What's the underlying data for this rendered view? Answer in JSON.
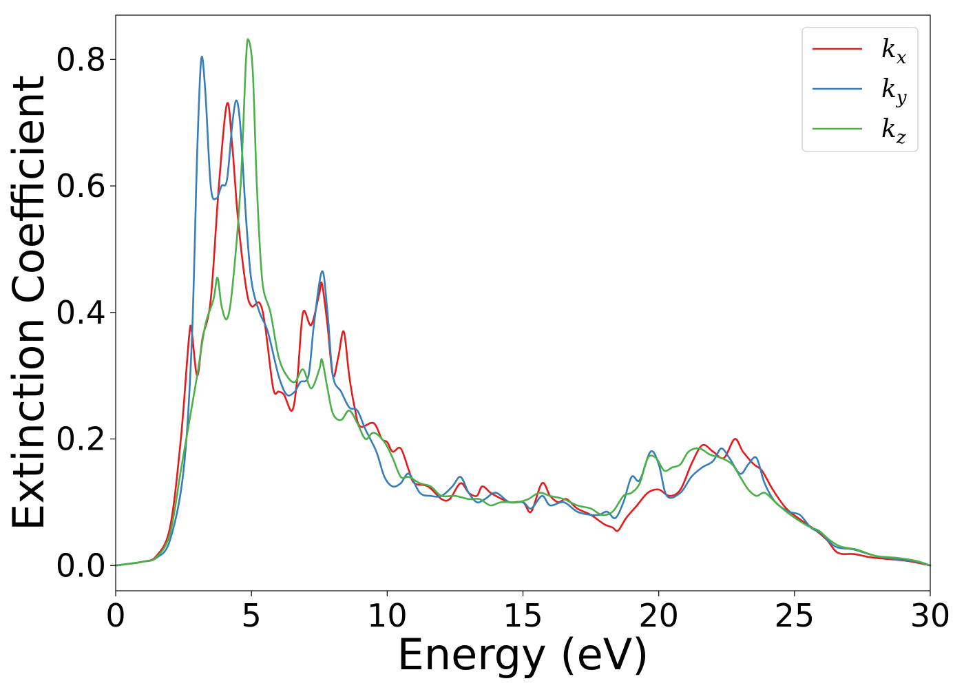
{
  "chart_data": {
    "type": "line",
    "xlabel": "Energy (eV)",
    "ylabel": "Extinction Coefficient",
    "xlim": [
      0,
      30
    ],
    "ylim": [
      -0.04,
      0.87
    ],
    "x_ticks": [
      0,
      5,
      10,
      15,
      20,
      25,
      30
    ],
    "x_tick_labels": [
      "0",
      "5",
      "10",
      "15",
      "20",
      "25",
      "30"
    ],
    "y_ticks": [
      0.0,
      0.2,
      0.4,
      0.6,
      0.8
    ],
    "y_tick_labels": [
      "0.0",
      "0.2",
      "0.4",
      "0.6",
      "0.8"
    ],
    "grid": false,
    "legend_position": "top-right",
    "series": [
      {
        "name": "k",
        "subscript": "x",
        "color": "#e41a1c",
        "points": [
          [
            0,
            0
          ],
          [
            1,
            0.006
          ],
          [
            1.5,
            0.015
          ],
          [
            2,
            0.06
          ],
          [
            2.4,
            0.2
          ],
          [
            2.7,
            0.36
          ],
          [
            2.8,
            0.37
          ],
          [
            3.0,
            0.3
          ],
          [
            3.2,
            0.36
          ],
          [
            3.5,
            0.42
          ],
          [
            3.8,
            0.6
          ],
          [
            4.1,
            0.73
          ],
          [
            4.3,
            0.66
          ],
          [
            4.5,
            0.55
          ],
          [
            4.8,
            0.44
          ],
          [
            5.0,
            0.41
          ],
          [
            5.3,
            0.415
          ],
          [
            5.5,
            0.38
          ],
          [
            5.8,
            0.28
          ],
          [
            6.0,
            0.275
          ],
          [
            6.2,
            0.27
          ],
          [
            6.5,
            0.245
          ],
          [
            6.7,
            0.3
          ],
          [
            6.9,
            0.4
          ],
          [
            7.2,
            0.38
          ],
          [
            7.5,
            0.43
          ],
          [
            7.6,
            0.445
          ],
          [
            7.8,
            0.38
          ],
          [
            8.0,
            0.3
          ],
          [
            8.2,
            0.33
          ],
          [
            8.4,
            0.37
          ],
          [
            8.6,
            0.3
          ],
          [
            8.8,
            0.25
          ],
          [
            9.0,
            0.22
          ],
          [
            9.5,
            0.225
          ],
          [
            9.8,
            0.2
          ],
          [
            10.0,
            0.195
          ],
          [
            10.2,
            0.18
          ],
          [
            10.5,
            0.185
          ],
          [
            10.8,
            0.15
          ],
          [
            11.0,
            0.13
          ],
          [
            11.5,
            0.125
          ],
          [
            12.0,
            0.105
          ],
          [
            12.3,
            0.105
          ],
          [
            12.7,
            0.13
          ],
          [
            13.0,
            0.115
          ],
          [
            13.3,
            0.11
          ],
          [
            13.5,
            0.125
          ],
          [
            13.8,
            0.115
          ],
          [
            14.0,
            0.11
          ],
          [
            14.5,
            0.1
          ],
          [
            15.0,
            0.1
          ],
          [
            15.3,
            0.085
          ],
          [
            15.7,
            0.13
          ],
          [
            16.0,
            0.11
          ],
          [
            16.3,
            0.1
          ],
          [
            16.6,
            0.105
          ],
          [
            17.0,
            0.09
          ],
          [
            17.5,
            0.08
          ],
          [
            18.0,
            0.065
          ],
          [
            18.3,
            0.06
          ],
          [
            18.5,
            0.055
          ],
          [
            18.8,
            0.075
          ],
          [
            19.2,
            0.095
          ],
          [
            19.6,
            0.115
          ],
          [
            20.0,
            0.12
          ],
          [
            20.4,
            0.11
          ],
          [
            20.8,
            0.12
          ],
          [
            21.2,
            0.16
          ],
          [
            21.6,
            0.19
          ],
          [
            22.0,
            0.18
          ],
          [
            22.4,
            0.17
          ],
          [
            22.8,
            0.2
          ],
          [
            23.1,
            0.18
          ],
          [
            23.5,
            0.16
          ],
          [
            23.8,
            0.15
          ],
          [
            24.2,
            0.12
          ],
          [
            24.7,
            0.09
          ],
          [
            25.3,
            0.07
          ],
          [
            25.8,
            0.055
          ],
          [
            26.2,
            0.04
          ],
          [
            26.6,
            0.02
          ],
          [
            27.2,
            0.018
          ],
          [
            27.8,
            0.013
          ],
          [
            28.5,
            0.01
          ],
          [
            29.2,
            0.007
          ],
          [
            30,
            0.0
          ]
        ]
      },
      {
        "name": "k",
        "subscript": "y",
        "color": "#377eb8",
        "points": [
          [
            0,
            0
          ],
          [
            1,
            0.006
          ],
          [
            1.5,
            0.012
          ],
          [
            2,
            0.04
          ],
          [
            2.5,
            0.15
          ],
          [
            2.8,
            0.35
          ],
          [
            3.0,
            0.65
          ],
          [
            3.15,
            0.8
          ],
          [
            3.3,
            0.75
          ],
          [
            3.5,
            0.6
          ],
          [
            3.7,
            0.58
          ],
          [
            3.9,
            0.6
          ],
          [
            4.1,
            0.61
          ],
          [
            4.3,
            0.7
          ],
          [
            4.45,
            0.735
          ],
          [
            4.6,
            0.69
          ],
          [
            4.8,
            0.55
          ],
          [
            5.0,
            0.45
          ],
          [
            5.3,
            0.4
          ],
          [
            5.6,
            0.37
          ],
          [
            6.0,
            0.3
          ],
          [
            6.3,
            0.27
          ],
          [
            6.6,
            0.275
          ],
          [
            6.8,
            0.29
          ],
          [
            7.1,
            0.3
          ],
          [
            7.3,
            0.38
          ],
          [
            7.6,
            0.465
          ],
          [
            7.8,
            0.4
          ],
          [
            8.0,
            0.3
          ],
          [
            8.3,
            0.275
          ],
          [
            8.6,
            0.25
          ],
          [
            8.9,
            0.245
          ],
          [
            9.2,
            0.215
          ],
          [
            9.6,
            0.18
          ],
          [
            9.9,
            0.14
          ],
          [
            10.2,
            0.125
          ],
          [
            10.5,
            0.13
          ],
          [
            10.8,
            0.145
          ],
          [
            11.2,
            0.115
          ],
          [
            11.6,
            0.11
          ],
          [
            12.0,
            0.11
          ],
          [
            12.4,
            0.125
          ],
          [
            12.7,
            0.14
          ],
          [
            13.0,
            0.115
          ],
          [
            13.3,
            0.1
          ],
          [
            13.6,
            0.105
          ],
          [
            14.0,
            0.115
          ],
          [
            14.5,
            0.1
          ],
          [
            15.0,
            0.1
          ],
          [
            15.3,
            0.09
          ],
          [
            15.7,
            0.11
          ],
          [
            16.0,
            0.095
          ],
          [
            16.5,
            0.1
          ],
          [
            17.0,
            0.085
          ],
          [
            17.5,
            0.08
          ],
          [
            17.8,
            0.08
          ],
          [
            18.1,
            0.085
          ],
          [
            18.4,
            0.075
          ],
          [
            18.7,
            0.1
          ],
          [
            19.0,
            0.14
          ],
          [
            19.3,
            0.135
          ],
          [
            19.7,
            0.18
          ],
          [
            20.0,
            0.16
          ],
          [
            20.3,
            0.11
          ],
          [
            20.8,
            0.115
          ],
          [
            21.2,
            0.14
          ],
          [
            21.6,
            0.155
          ],
          [
            22.0,
            0.165
          ],
          [
            22.3,
            0.185
          ],
          [
            22.6,
            0.17
          ],
          [
            23.0,
            0.145
          ],
          [
            23.3,
            0.16
          ],
          [
            23.6,
            0.17
          ],
          [
            23.9,
            0.13
          ],
          [
            24.3,
            0.1
          ],
          [
            24.8,
            0.085
          ],
          [
            25.2,
            0.08
          ],
          [
            25.6,
            0.06
          ],
          [
            26.0,
            0.05
          ],
          [
            26.5,
            0.03
          ],
          [
            27.2,
            0.025
          ],
          [
            28.0,
            0.015
          ],
          [
            28.8,
            0.01
          ],
          [
            29.5,
            0.006
          ],
          [
            30,
            0.0
          ]
        ]
      },
      {
        "name": "k",
        "subscript": "z",
        "color": "#4daf4a",
        "points": [
          [
            0,
            0
          ],
          [
            1,
            0.006
          ],
          [
            1.5,
            0.013
          ],
          [
            2,
            0.05
          ],
          [
            2.4,
            0.15
          ],
          [
            2.8,
            0.25
          ],
          [
            3.0,
            0.3
          ],
          [
            3.3,
            0.38
          ],
          [
            3.6,
            0.42
          ],
          [
            3.75,
            0.455
          ],
          [
            3.9,
            0.41
          ],
          [
            4.1,
            0.39
          ],
          [
            4.3,
            0.44
          ],
          [
            4.6,
            0.6
          ],
          [
            4.8,
            0.8
          ],
          [
            4.9,
            0.83
          ],
          [
            5.05,
            0.78
          ],
          [
            5.2,
            0.6
          ],
          [
            5.4,
            0.45
          ],
          [
            5.7,
            0.4
          ],
          [
            6.0,
            0.33
          ],
          [
            6.3,
            0.3
          ],
          [
            6.6,
            0.29
          ],
          [
            6.9,
            0.31
          ],
          [
            7.2,
            0.28
          ],
          [
            7.5,
            0.31
          ],
          [
            7.6,
            0.325
          ],
          [
            7.8,
            0.28
          ],
          [
            8.0,
            0.24
          ],
          [
            8.3,
            0.23
          ],
          [
            8.6,
            0.245
          ],
          [
            8.9,
            0.225
          ],
          [
            9.2,
            0.2
          ],
          [
            9.5,
            0.21
          ],
          [
            9.9,
            0.195
          ],
          [
            10.2,
            0.17
          ],
          [
            10.5,
            0.14
          ],
          [
            10.8,
            0.14
          ],
          [
            11.2,
            0.13
          ],
          [
            11.6,
            0.125
          ],
          [
            12.0,
            0.11
          ],
          [
            12.5,
            0.11
          ],
          [
            13.0,
            0.105
          ],
          [
            13.4,
            0.105
          ],
          [
            13.8,
            0.095
          ],
          [
            14.2,
            0.1
          ],
          [
            14.8,
            0.1
          ],
          [
            15.2,
            0.105
          ],
          [
            15.6,
            0.115
          ],
          [
            16.0,
            0.11
          ],
          [
            16.5,
            0.105
          ],
          [
            17.0,
            0.095
          ],
          [
            17.5,
            0.09
          ],
          [
            17.9,
            0.08
          ],
          [
            18.3,
            0.085
          ],
          [
            18.7,
            0.11
          ],
          [
            19.0,
            0.115
          ],
          [
            19.3,
            0.13
          ],
          [
            19.6,
            0.17
          ],
          [
            19.9,
            0.17
          ],
          [
            20.2,
            0.15
          ],
          [
            20.5,
            0.155
          ],
          [
            20.8,
            0.16
          ],
          [
            21.1,
            0.18
          ],
          [
            21.5,
            0.185
          ],
          [
            21.9,
            0.175
          ],
          [
            22.3,
            0.17
          ],
          [
            22.7,
            0.16
          ],
          [
            23.0,
            0.14
          ],
          [
            23.3,
            0.12
          ],
          [
            23.6,
            0.11
          ],
          [
            23.9,
            0.115
          ],
          [
            24.3,
            0.1
          ],
          [
            24.7,
            0.085
          ],
          [
            25.2,
            0.07
          ],
          [
            25.6,
            0.06
          ],
          [
            25.9,
            0.055
          ],
          [
            26.3,
            0.04
          ],
          [
            26.7,
            0.03
          ],
          [
            27.3,
            0.025
          ],
          [
            28.0,
            0.015
          ],
          [
            28.8,
            0.012
          ],
          [
            29.5,
            0.007
          ],
          [
            30,
            0.0
          ]
        ]
      }
    ]
  }
}
